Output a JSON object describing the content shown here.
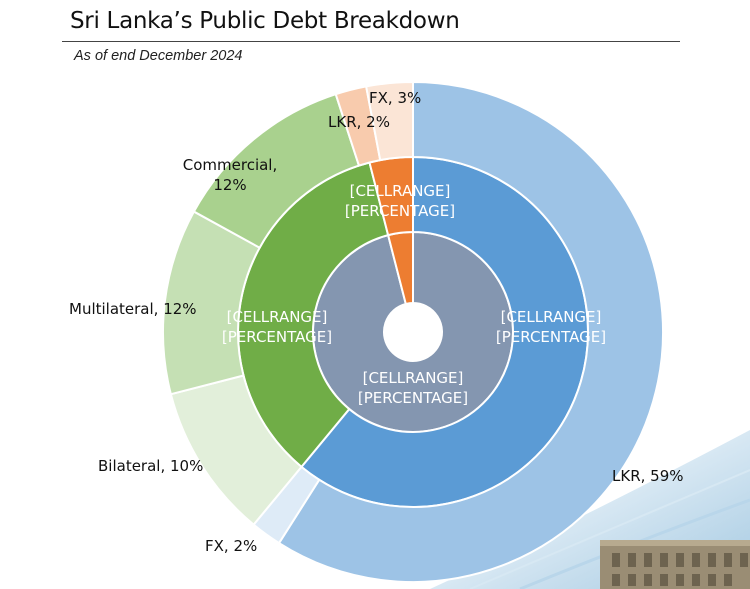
{
  "header": {
    "title": "Sri Lanka’s Public Debt Breakdown",
    "subtitle": "As of end December 2024"
  },
  "chart_data": {
    "type": "donut",
    "title": "Sri Lanka’s Public Debt Breakdown",
    "subtitle": "As of end December 2024",
    "rings": [
      {
        "ring": "inner",
        "slices": [
          {
            "label": "[CELLRANGE]\n[PERCENTAGE]",
            "value": 96,
            "color": "#8496b0"
          },
          {
            "label": "",
            "value": 4,
            "color": "#ed7d31"
          }
        ]
      },
      {
        "ring": "middle",
        "slices": [
          {
            "label": "[CELLRANGE]\n[PERCENTAGE]",
            "value": 61,
            "color": "#5b9bd5"
          },
          {
            "label": "[CELLRANGE]\n[PERCENTAGE]",
            "value": 35,
            "color": "#70ad47"
          },
          {
            "label": "[CELLRANGE]\n[PERCENTAGE]",
            "value": 4,
            "color": "#ed7d31"
          }
        ]
      },
      {
        "ring": "outer",
        "slices": [
          {
            "label": "LKR, 59%",
            "value": 59,
            "color": "#9dc3e6"
          },
          {
            "label": "FX, 2%",
            "value": 2,
            "color": "#deebf7"
          },
          {
            "label": "Bilateral, 10%",
            "value": 10,
            "color": "#e2efda"
          },
          {
            "label": "Multilateral, 12%",
            "value": 12,
            "color": "#c5e0b4"
          },
          {
            "label": "Commercial,\n12%",
            "value": 12,
            "color": "#a9d18e"
          },
          {
            "label": "LKR, 2%",
            "value": 2,
            "color": "#f8cbad"
          },
          {
            "label": "FX, 3%",
            "value": 3,
            "color": "#fbe5d6"
          }
        ]
      }
    ]
  }
}
